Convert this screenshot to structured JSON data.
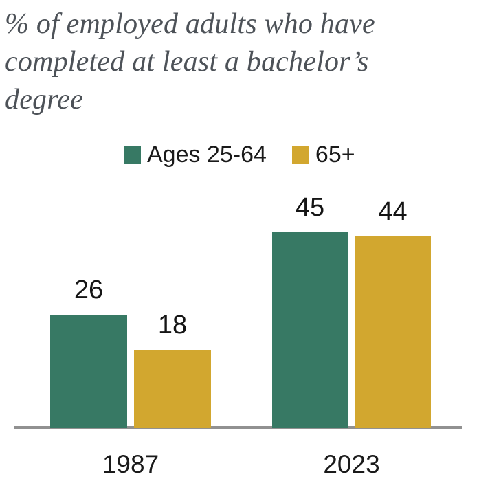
{
  "title_lines": [
    "% of employed adults who have",
    "completed at least a bachelor’s",
    "degree"
  ],
  "chart_data": {
    "type": "bar",
    "title": "% of employed adults who have completed at least a bachelor’s degree",
    "categories": [
      "1987",
      "2023"
    ],
    "series": [
      {
        "name": "Ages 25-64",
        "color": "#377964",
        "values": [
          26,
          45
        ]
      },
      {
        "name": "65+",
        "color": "#D2A72F",
        "values": [
          18,
          44
        ]
      }
    ],
    "ylim": [
      0,
      50
    ],
    "value_labels": true,
    "grid": false,
    "legend_position": "top",
    "axis_line_color": "#919191",
    "title_color": "#4d5258",
    "label_color": "#1a1a1a"
  }
}
